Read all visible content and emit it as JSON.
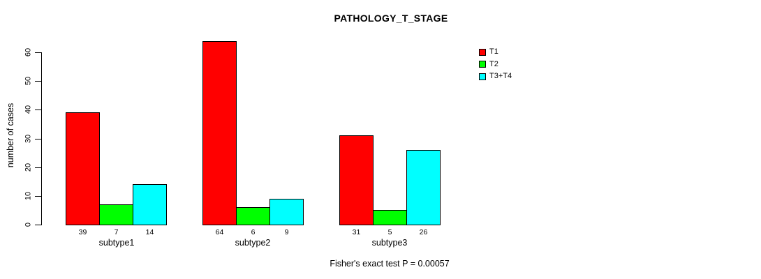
{
  "title": "PATHOLOGY_T_STAGE",
  "footer": "Fisher's exact test P = 0.00057",
  "y_axis": {
    "label": "number of cases",
    "ticks": [
      0,
      10,
      20,
      30,
      40,
      50,
      60
    ]
  },
  "legend": {
    "items": [
      {
        "label": "T1",
        "color": "#ff0000"
      },
      {
        "label": "T2",
        "color": "#00ff00"
      },
      {
        "label": "T3+T4",
        "color": "#00ffff"
      }
    ]
  },
  "chart_data": {
    "type": "bar",
    "title": "PATHOLOGY_T_STAGE",
    "categories": [
      "subtype1",
      "subtype2",
      "subtype3"
    ],
    "series": [
      {
        "name": "T1",
        "color": "#ff0000",
        "values": [
          39,
          64,
          31
        ]
      },
      {
        "name": "T2",
        "color": "#00ff00",
        "values": [
          7,
          6,
          5
        ]
      },
      {
        "name": "T3+T4",
        "color": "#00ffff",
        "values": [
          14,
          9,
          26
        ]
      }
    ],
    "xlabel": "",
    "ylabel": "number of cases",
    "yticks": [
      0,
      10,
      20,
      30,
      40,
      50,
      60
    ],
    "ylim": [
      0,
      66
    ],
    "grid": false,
    "bar_border_color": "#000000",
    "value_labels_under_bars": true,
    "legend_position": "top-right",
    "annotation": "Fisher's exact test P = 0.00057"
  }
}
